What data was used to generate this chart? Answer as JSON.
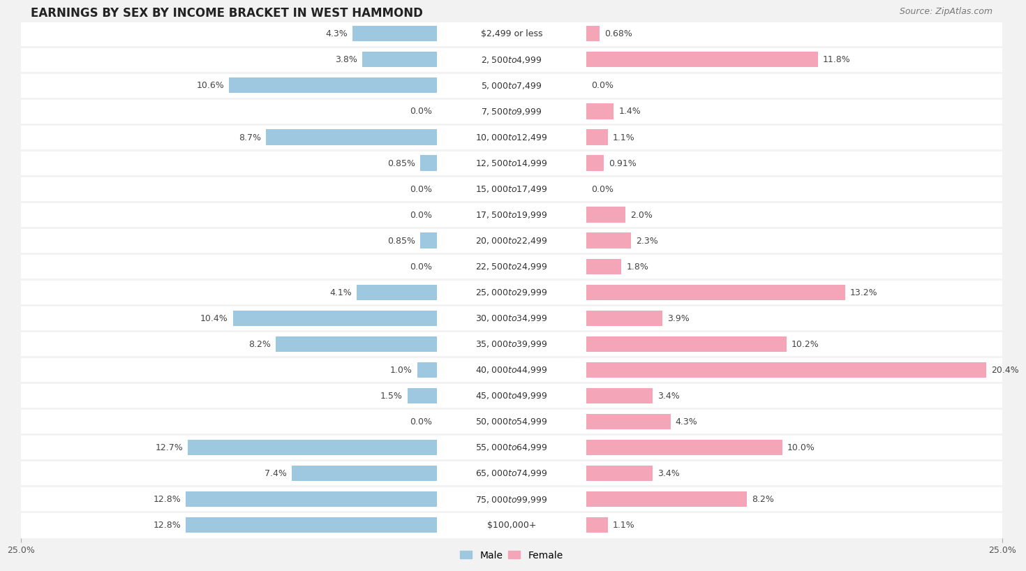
{
  "title": "EARNINGS BY SEX BY INCOME BRACKET IN WEST HAMMOND",
  "source": "Source: ZipAtlas.com",
  "categories": [
    "$2,499 or less",
    "$2,500 to $4,999",
    "$5,000 to $7,499",
    "$7,500 to $9,999",
    "$10,000 to $12,499",
    "$12,500 to $14,999",
    "$15,000 to $17,499",
    "$17,500 to $19,999",
    "$20,000 to $22,499",
    "$22,500 to $24,999",
    "$25,000 to $29,999",
    "$30,000 to $34,999",
    "$35,000 to $39,999",
    "$40,000 to $44,999",
    "$45,000 to $49,999",
    "$50,000 to $54,999",
    "$55,000 to $64,999",
    "$65,000 to $74,999",
    "$75,000 to $99,999",
    "$100,000+"
  ],
  "male_values": [
    4.3,
    3.8,
    10.6,
    0.0,
    8.7,
    0.85,
    0.0,
    0.0,
    0.85,
    0.0,
    4.1,
    10.4,
    8.2,
    1.0,
    1.5,
    0.0,
    12.7,
    7.4,
    12.8,
    12.8
  ],
  "female_values": [
    0.68,
    11.8,
    0.0,
    1.4,
    1.1,
    0.91,
    0.0,
    2.0,
    2.3,
    1.8,
    13.2,
    3.9,
    10.2,
    20.4,
    3.4,
    4.3,
    10.0,
    3.4,
    8.2,
    1.1
  ],
  "male_color": "#9ec8e0",
  "female_color": "#f4a6b8",
  "background_color": "#f2f2f2",
  "row_color": "#ffffff",
  "xlim": 25.0,
  "bar_height": 0.6,
  "title_fontsize": 12,
  "label_fontsize": 9,
  "category_fontsize": 9,
  "source_fontsize": 9,
  "tick_fontsize": 9
}
